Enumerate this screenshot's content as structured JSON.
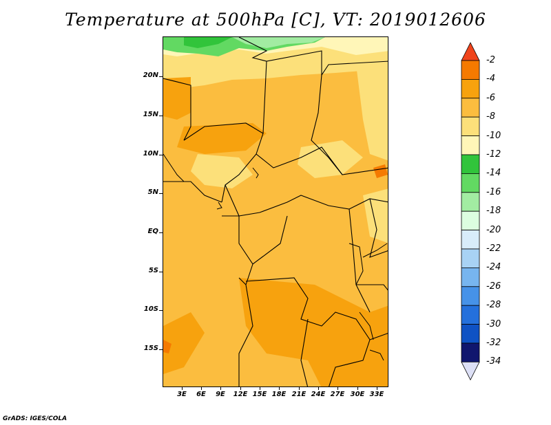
{
  "title": "Temperature at 500hPa [C], VT: 2019012606",
  "credit": "GrADS: IGES/COLA",
  "lat_ticks": [
    "20N",
    "15N",
    "10N",
    "5N",
    "EQ",
    "5S",
    "10S",
    "15S"
  ],
  "lon_ticks": [
    "3E",
    "6E",
    "9E",
    "12E",
    "15E",
    "18E",
    "21E",
    "24E",
    "27E",
    "30E",
    "33E"
  ],
  "colorbar": {
    "labels": [
      "-2",
      "-4",
      "-6",
      "-8",
      "-10",
      "-12",
      "-14",
      "-16",
      "-18",
      "-20",
      "-22",
      "-24",
      "-26",
      "-28",
      "-30",
      "-32",
      "-34"
    ],
    "colors": [
      "#f0441c",
      "#f57a00",
      "#f7a20e",
      "#fbbd3f",
      "#fce07a",
      "#fff6b8",
      "#31c43b",
      "#62d962",
      "#a2eca2",
      "#dcfde0",
      "#d8ecfa",
      "#a8d2f4",
      "#77b5ef",
      "#4692e8",
      "#2470dc",
      "#0f52c4",
      "#10166e"
    ]
  },
  "map": {
    "field": "Temperature at 500hPa",
    "units": "C",
    "valid_time": "2019012606"
  }
}
